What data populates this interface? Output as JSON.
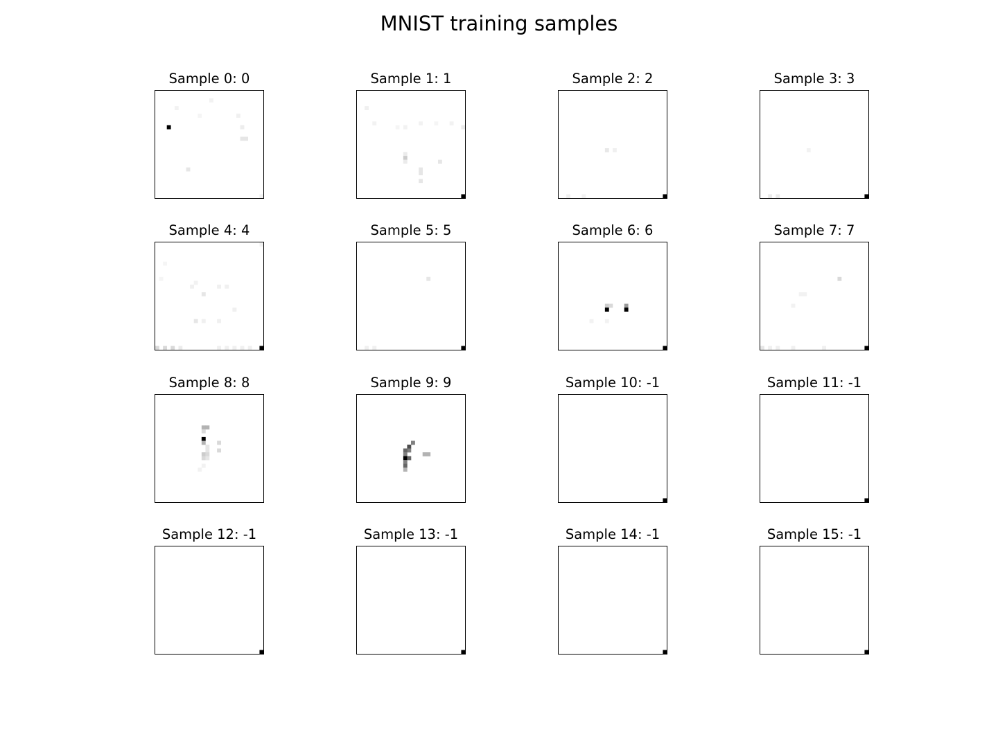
{
  "chart_data": {
    "type": "heatmap",
    "title": "MNIST training samples",
    "grid": false,
    "colormap": "gray_r",
    "image_size": [
      28,
      28
    ],
    "pixel_format": "[row, col, intensity 0-1]",
    "samples": [
      {
        "title": "Sample 0: 0",
        "pixels": [
          [
            2,
            14,
            0.05
          ],
          [
            4,
            5,
            0.05
          ],
          [
            6,
            11,
            0.04
          ],
          [
            6,
            21,
            0.06
          ],
          [
            9,
            3,
            1.0
          ],
          [
            9,
            22,
            0.07
          ],
          [
            12,
            22,
            0.1
          ],
          [
            12,
            23,
            0.1
          ],
          [
            20,
            8,
            0.1
          ],
          [
            27,
            27,
            0.05
          ]
        ]
      },
      {
        "title": "Sample 1: 1",
        "pixels": [
          [
            4,
            2,
            0.06
          ],
          [
            8,
            4,
            0.05
          ],
          [
            8,
            16,
            0.05
          ],
          [
            8,
            20,
            0.04
          ],
          [
            8,
            24,
            0.05
          ],
          [
            9,
            10,
            0.04
          ],
          [
            9,
            12,
            0.05
          ],
          [
            9,
            27,
            0.08
          ],
          [
            16,
            12,
            0.08
          ],
          [
            17,
            12,
            0.2
          ],
          [
            18,
            12,
            0.08
          ],
          [
            18,
            21,
            0.1
          ],
          [
            20,
            16,
            0.1
          ],
          [
            21,
            16,
            0.1
          ],
          [
            23,
            16,
            0.1
          ],
          [
            27,
            27,
            1.0
          ]
        ]
      },
      {
        "title": "Sample 2: 2",
        "pixels": [
          [
            15,
            12,
            0.09
          ],
          [
            15,
            14,
            0.06
          ],
          [
            27,
            2,
            0.06
          ],
          [
            27,
            6,
            0.05
          ],
          [
            27,
            27,
            1.0
          ]
        ]
      },
      {
        "title": "Sample 3: 3",
        "pixels": [
          [
            15,
            12,
            0.05
          ],
          [
            27,
            2,
            0.08
          ],
          [
            27,
            4,
            0.08
          ],
          [
            27,
            27,
            1.0
          ]
        ]
      },
      {
        "title": "Sample 4: 4",
        "pixels": [
          [
            0,
            27,
            0.05
          ],
          [
            5,
            2,
            0.04
          ],
          [
            9,
            1,
            0.04
          ],
          [
            10,
            10,
            0.05
          ],
          [
            11,
            9,
            0.06
          ],
          [
            11,
            16,
            0.06
          ],
          [
            11,
            18,
            0.06
          ],
          [
            13,
            12,
            0.1
          ],
          [
            17,
            20,
            0.06
          ],
          [
            20,
            10,
            0.1
          ],
          [
            20,
            12,
            0.06
          ],
          [
            20,
            16,
            0.06
          ],
          [
            27,
            0,
            0.15
          ],
          [
            27,
            2,
            0.15
          ],
          [
            27,
            4,
            0.15
          ],
          [
            27,
            6,
            0.08
          ],
          [
            27,
            16,
            0.06
          ],
          [
            27,
            18,
            0.06
          ],
          [
            27,
            20,
            0.06
          ],
          [
            27,
            22,
            0.06
          ],
          [
            27,
            24,
            0.06
          ],
          [
            27,
            27,
            1.0
          ]
        ]
      },
      {
        "title": "Sample 5: 5",
        "pixels": [
          [
            9,
            18,
            0.1
          ],
          [
            27,
            2,
            0.06
          ],
          [
            27,
            4,
            0.06
          ],
          [
            27,
            27,
            1.0
          ]
        ]
      },
      {
        "title": "Sample 6: 6",
        "pixels": [
          [
            16,
            12,
            0.2
          ],
          [
            16,
            13,
            0.15
          ],
          [
            16,
            17,
            0.4
          ],
          [
            17,
            12,
            1.0
          ],
          [
            17,
            17,
            1.0
          ],
          [
            20,
            8,
            0.05
          ],
          [
            20,
            12,
            0.05
          ],
          [
            27,
            27,
            1.0
          ]
        ]
      },
      {
        "title": "Sample 7: 7",
        "pixels": [
          [
            9,
            20,
            0.15
          ],
          [
            13,
            10,
            0.05
          ],
          [
            13,
            11,
            0.05
          ],
          [
            16,
            8,
            0.05
          ],
          [
            27,
            0,
            0.1
          ],
          [
            27,
            2,
            0.06
          ],
          [
            27,
            4,
            0.06
          ],
          [
            27,
            8,
            0.06
          ],
          [
            27,
            16,
            0.06
          ],
          [
            27,
            27,
            1.0
          ]
        ]
      },
      {
        "title": "Sample 8: 8",
        "pixels": [
          [
            8,
            12,
            0.3
          ],
          [
            8,
            13,
            0.3
          ],
          [
            9,
            12,
            0.15
          ],
          [
            11,
            12,
            1.0
          ],
          [
            12,
            12,
            0.3
          ],
          [
            12,
            16,
            0.15
          ],
          [
            13,
            13,
            0.1
          ],
          [
            14,
            13,
            0.1
          ],
          [
            14,
            16,
            0.15
          ],
          [
            15,
            12,
            0.2
          ],
          [
            15,
            13,
            0.15
          ],
          [
            16,
            12,
            0.15
          ],
          [
            16,
            13,
            0.1
          ],
          [
            18,
            12,
            0.05
          ],
          [
            19,
            11,
            0.05
          ]
        ]
      },
      {
        "title": "Sample 9: 9",
        "pixels": [
          [
            12,
            14,
            0.5
          ],
          [
            13,
            13,
            0.7
          ],
          [
            14,
            13,
            0.5
          ],
          [
            14,
            12,
            0.6
          ],
          [
            15,
            12,
            0.5
          ],
          [
            15,
            17,
            0.3
          ],
          [
            15,
            18,
            0.3
          ],
          [
            16,
            12,
            1.0
          ],
          [
            16,
            13,
            0.6
          ],
          [
            17,
            12,
            0.5
          ],
          [
            18,
            12,
            0.6
          ],
          [
            19,
            12,
            0.3
          ]
        ]
      },
      {
        "title": "Sample 10: -1",
        "pixels": [
          [
            27,
            27,
            1.0
          ]
        ]
      },
      {
        "title": "Sample 11: -1",
        "pixels": [
          [
            27,
            27,
            1.0
          ]
        ]
      },
      {
        "title": "Sample 12: -1",
        "pixels": [
          [
            27,
            27,
            1.0
          ]
        ]
      },
      {
        "title": "Sample 13: -1",
        "pixels": [
          [
            27,
            27,
            1.0
          ]
        ]
      },
      {
        "title": "Sample 14: -1",
        "pixels": [
          [
            27,
            27,
            1.0
          ]
        ]
      },
      {
        "title": "Sample 15: -1",
        "pixels": [
          [
            27,
            27,
            1.0
          ]
        ]
      }
    ]
  }
}
